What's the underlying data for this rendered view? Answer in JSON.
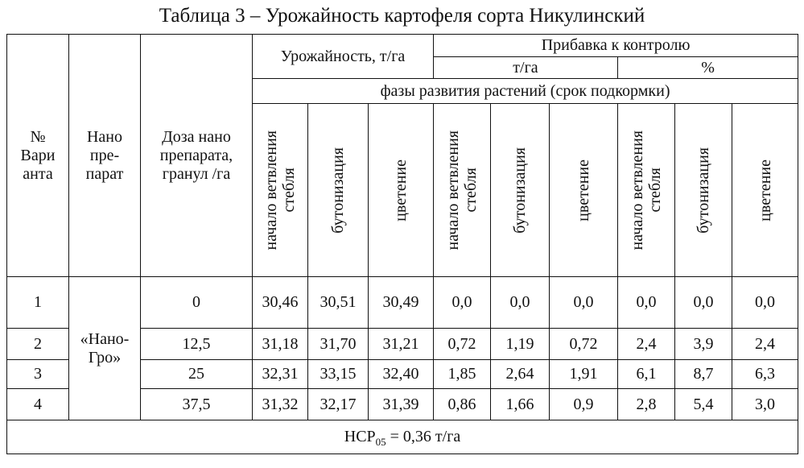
{
  "caption": "Таблица 3 – Урожайность картофеля сорта Никулинский",
  "headers": {
    "variant": "№\nВари\nанта",
    "preparation": "Нано\nпре-\nпарат",
    "dose": "Доза нано\nпрепарата,\nгранул /га",
    "yield": "Урожайность, т/га",
    "increase": "Прибавка к контролю",
    "increase_tha": "т/га",
    "increase_pct": "%",
    "phases": "фазы развития растений (срок подкормки)",
    "phase_names": [
      "начало ветвления\nстебля",
      "бутонизация",
      "цветение",
      "начало ветвления\nстебля",
      "бутонизация",
      "цветение",
      "начало ветвления\nстебля",
      "бутонизация",
      "цветение"
    ]
  },
  "preparation_name": "«Нано-\nГро»",
  "rows": [
    {
      "variant": "1",
      "dose": "0",
      "values": [
        "30,46",
        "30,51",
        "30,49",
        "0,0",
        "0,0",
        "0,0",
        "0,0",
        "0,0",
        "0,0"
      ]
    },
    {
      "variant": "2",
      "dose": "12,5",
      "values": [
        "31,18",
        "31,70",
        "31,21",
        "0,72",
        "1,19",
        "0,72",
        "2,4",
        "3,9",
        "2,4"
      ]
    },
    {
      "variant": "3",
      "dose": "25",
      "values": [
        "32,31",
        "33,15",
        "32,40",
        "1,85",
        "2,64",
        "1,91",
        "6,1",
        "8,7",
        "6,3"
      ]
    },
    {
      "variant": "4",
      "dose": "37,5",
      "values": [
        "31,32",
        "32,17",
        "31,39",
        "0,86",
        "1,66",
        "0,9",
        "2,8",
        "5,4",
        "3,0"
      ]
    }
  ],
  "footnote": {
    "prefix": "НСР",
    "subscript": "05",
    "suffix": " = 0,36 т/га"
  }
}
